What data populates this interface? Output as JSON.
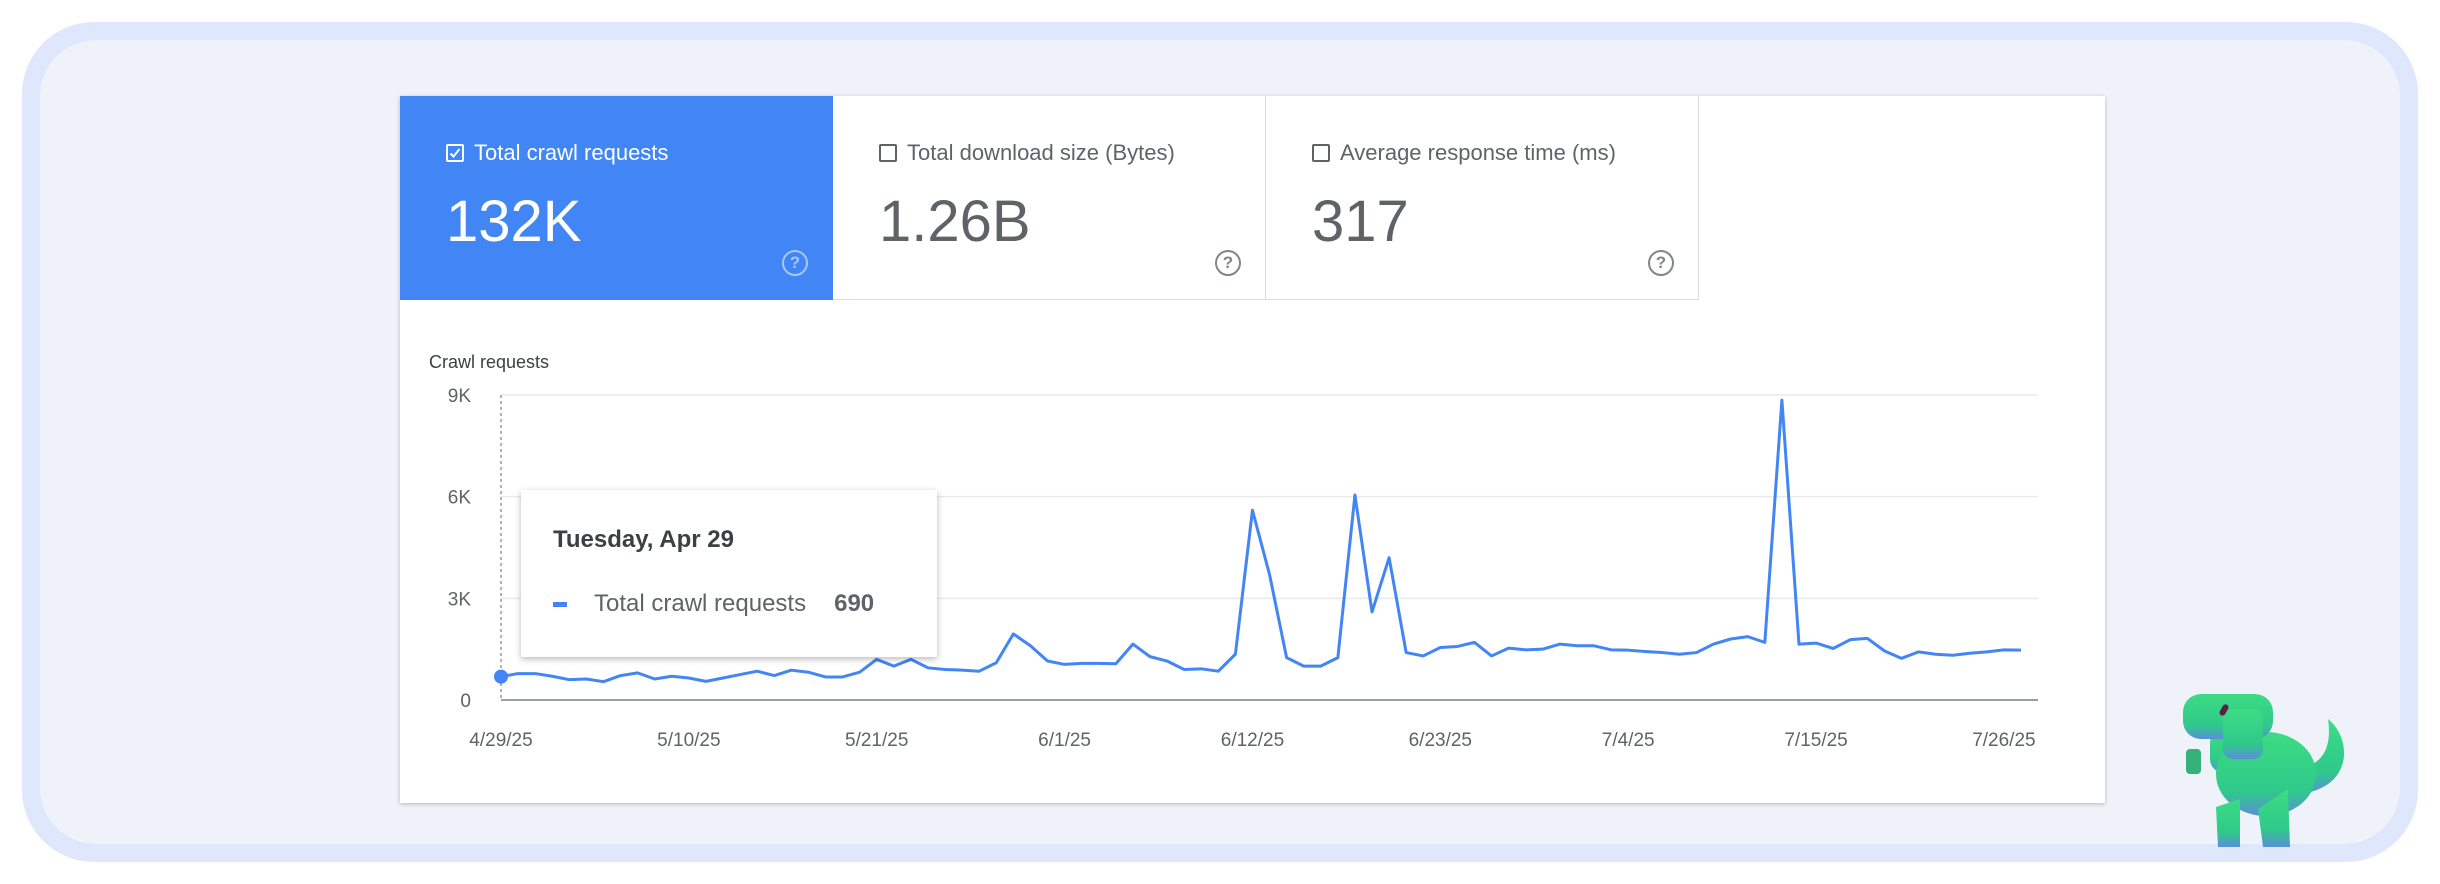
{
  "metrics": [
    {
      "label": "Total crawl requests",
      "value": "132K",
      "checked": true
    },
    {
      "label": "Total download size (Bytes)",
      "value": "1.26B",
      "checked": false
    },
    {
      "label": "Average response time (ms)",
      "value": "317",
      "checked": false
    }
  ],
  "help_glyph": "?",
  "tooltip": {
    "title": "Tuesday, Apr 29",
    "series": "Total crawl requests",
    "value": "690"
  },
  "colors": {
    "accent": "#4285f4",
    "panel": "#eff3f9",
    "frame": "#dfe7fc",
    "dino": "#3ddc84"
  },
  "chart_data": {
    "type": "line",
    "title": "Crawl requests",
    "ylim": [
      0,
      9000
    ],
    "yticks": [
      {
        "v": 0,
        "label": "0"
      },
      {
        "v": 3000,
        "label": "3K"
      },
      {
        "v": 6000,
        "label": "6K"
      },
      {
        "v": 9000,
        "label": "9K"
      }
    ],
    "xtick_labels": [
      "4/29/25",
      "5/10/25",
      "5/21/25",
      "6/1/25",
      "6/12/25",
      "6/23/25",
      "7/4/25",
      "7/15/25",
      "7/26/25"
    ],
    "grid": true,
    "series": [
      {
        "name": "Total crawl requests",
        "color": "#4285f4"
      }
    ],
    "x": [
      "4/29/25",
      "4/30/25",
      "5/1/25",
      "5/2/25",
      "5/3/25",
      "5/4/25",
      "5/5/25",
      "5/6/25",
      "5/7/25",
      "5/8/25",
      "5/9/25",
      "5/10/25",
      "5/11/25",
      "5/12/25",
      "5/13/25",
      "5/14/25",
      "5/15/25",
      "5/16/25",
      "5/17/25",
      "5/18/25",
      "5/19/25",
      "5/20/25",
      "5/21/25",
      "5/22/25",
      "5/23/25",
      "5/24/25",
      "5/25/25",
      "5/26/25",
      "5/27/25",
      "5/28/25",
      "5/29/25",
      "5/30/25",
      "5/31/25",
      "6/1/25",
      "6/2/25",
      "6/3/25",
      "6/4/25",
      "6/5/25",
      "6/6/25",
      "6/7/25",
      "6/8/25",
      "6/9/25",
      "6/10/25",
      "6/11/25",
      "6/12/25",
      "6/13/25",
      "6/14/25",
      "6/15/25",
      "6/16/25",
      "6/17/25",
      "6/18/25",
      "6/19/25",
      "6/20/25",
      "6/21/25",
      "6/22/25",
      "6/23/25",
      "6/24/25",
      "6/25/25",
      "6/26/25",
      "6/27/25",
      "6/28/25",
      "6/29/25",
      "6/30/25",
      "7/1/25",
      "7/2/25",
      "7/3/25",
      "7/4/25",
      "7/5/25",
      "7/6/25",
      "7/7/25",
      "7/8/25",
      "7/9/25",
      "7/10/25",
      "7/11/25",
      "7/12/25",
      "7/13/25",
      "7/14/25",
      "7/15/25",
      "7/16/25",
      "7/17/25",
      "7/18/25",
      "7/19/25",
      "7/20/25",
      "7/21/25",
      "7/22/25",
      "7/23/25",
      "7/24/25",
      "7/25/25",
      "7/26/25",
      "7/27/25"
    ],
    "values": [
      690,
      780,
      780,
      700,
      600,
      620,
      540,
      720,
      800,
      620,
      700,
      650,
      550,
      650,
      750,
      850,
      720,
      880,
      820,
      680,
      680,
      820,
      1200,
      1000,
      1200,
      950,
      900,
      880,
      850,
      1100,
      1950,
      1600,
      1150,
      1050,
      1080,
      1080,
      1070,
      1650,
      1280,
      1150,
      900,
      920,
      850,
      1350,
      5600,
      3700,
      1250,
      1000,
      1000,
      1250,
      6050,
      2600,
      4200,
      1400,
      1300,
      1550,
      1580,
      1700,
      1300,
      1530,
      1480,
      1500,
      1650,
      1600,
      1600,
      1480,
      1470,
      1430,
      1400,
      1350,
      1400,
      1650,
      1800,
      1870,
      1700,
      8850,
      1650,
      1680,
      1520,
      1780,
      1820,
      1450,
      1230,
      1420,
      1350,
      1320,
      1380,
      1420,
      1480,
      1470
    ]
  }
}
